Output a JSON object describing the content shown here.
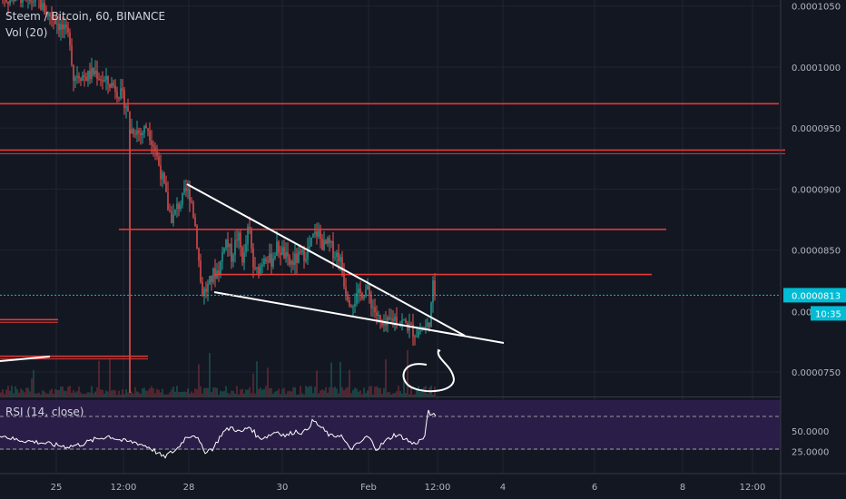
{
  "header": {
    "symbol_line": "Steem / Bitcoin, 60, BINANCE",
    "volume_label": "Vol (20)"
  },
  "rsi_pane": {
    "label": "RSI (14, close)",
    "ticks": [
      "50.0000",
      "25.0000"
    ]
  },
  "colors": {
    "background": "#131722",
    "grid": "#1f2433",
    "up": "#26a69a",
    "down": "#ef5350",
    "horizontal_lines": "#e53935",
    "trendlines": "#ffffff",
    "rsi_band": "#2a1e48",
    "rsi_line": "#ffffff",
    "last_price": "#00bcd4"
  },
  "chart_data": {
    "type": "candlestick",
    "y_axis_ticks": [
      "0.0001050",
      "0.0001000",
      "0.0000950",
      "0.0000900",
      "0.0000850",
      "0.0000750"
    ],
    "x_axis_ticks": [
      "25",
      "12:00",
      "28",
      "30",
      "Feb",
      "12:00",
      "4",
      "6",
      "8",
      "12:00"
    ],
    "ylim": [
      7.3e-05,
      0.0001055
    ],
    "last_price": "0.0000813",
    "partial_label": "0.00",
    "countdown": "10:35",
    "horizontal_levels": [
      9.7e-05,
      9.32e-05,
      8.67e-05,
      8.3e-05,
      7.93e-05,
      7.63e-05
    ],
    "price_path": [
      [
        0,
        0.0001062
      ],
      [
        5,
        0.0001058
      ],
      [
        10,
        0.0001055
      ],
      [
        20,
        0.000106
      ],
      [
        30,
        0.0001052
      ],
      [
        40,
        0.0001057
      ],
      [
        50,
        0.0001045
      ],
      [
        60,
        0.000104
      ],
      [
        70,
        0.000103
      ],
      [
        78,
        0.0001022
      ],
      [
        80,
        9.9e-05
      ],
      [
        85,
        9.95e-05
      ],
      [
        95,
        9.92e-05
      ],
      [
        105,
        9.96e-05
      ],
      [
        115,
        9.88e-05
      ],
      [
        125,
        9.85e-05
      ],
      [
        135,
        9.75e-05
      ],
      [
        140,
        9.68e-05
      ],
      [
        143,
        9.48e-05
      ],
      [
        148,
        9.5e-05
      ],
      [
        155,
        9.45e-05
      ],
      [
        162,
        9.52e-05
      ],
      [
        170,
        9.35e-05
      ],
      [
        175,
        9.2e-05
      ],
      [
        180,
        9.05e-05
      ],
      [
        185,
        8.85e-05
      ],
      [
        190,
        8.75e-05
      ],
      [
        195,
        8.85e-05
      ],
      [
        200,
        8.9e-05
      ],
      [
        205,
        8.98e-05
      ],
      [
        210,
        8.95e-05
      ],
      [
        215,
        8.7e-05
      ],
      [
        218,
        8.5e-05
      ],
      [
        222,
        8.15e-05
      ],
      [
        228,
        8.18e-05
      ],
      [
        235,
        8.3e-05
      ],
      [
        242,
        8.35e-05
      ],
      [
        248,
        8.6e-05
      ],
      [
        255,
        8.45e-05
      ],
      [
        262,
        8.63e-05
      ],
      [
        268,
        8.4e-05
      ],
      [
        274,
        8.7e-05
      ],
      [
        280,
        8.3e-05
      ],
      [
        286,
        8.35e-05
      ],
      [
        292,
        8.48e-05
      ],
      [
        298,
        8.4e-05
      ],
      [
        305,
        8.52e-05
      ],
      [
        312,
        8.48e-05
      ],
      [
        318,
        8.38e-05
      ],
      [
        325,
        8.42e-05
      ],
      [
        332,
        8.45e-05
      ],
      [
        340,
        8.5e-05
      ],
      [
        345,
        8.6e-05
      ],
      [
        350,
        8.65e-05
      ],
      [
        356,
        8.53e-05
      ],
      [
        362,
        8.55e-05
      ],
      [
        368,
        8.48e-05
      ],
      [
        374,
        8.45e-05
      ],
      [
        380,
        8.2e-05
      ],
      [
        386,
        8.08e-05
      ],
      [
        392,
        8.1e-05
      ],
      [
        398,
        8.15e-05
      ],
      [
        404,
        8.18e-05
      ],
      [
        410,
        8.05e-05
      ],
      [
        416,
        7.95e-05
      ],
      [
        422,
        7.85e-05
      ],
      [
        428,
        7.9e-05
      ],
      [
        434,
        7.95e-05
      ],
      [
        440,
        7.92e-05
      ],
      [
        446,
        7.9e-05
      ],
      [
        452,
        7.86e-05
      ],
      [
        458,
        7.82e-05
      ],
      [
        464,
        7.85e-05
      ],
      [
        470,
        7.86e-05
      ],
      [
        474,
        7.95e-05
      ],
      [
        477,
        8.2e-05
      ],
      [
        480,
        8.13e-05
      ]
    ],
    "rsi_path": [
      [
        0,
        48
      ],
      [
        15,
        42
      ],
      [
        30,
        40
      ],
      [
        45,
        38
      ],
      [
        60,
        35
      ],
      [
        75,
        33
      ],
      [
        90,
        36
      ],
      [
        105,
        42
      ],
      [
        120,
        46
      ],
      [
        135,
        40
      ],
      [
        150,
        38
      ],
      [
        165,
        32
      ],
      [
        180,
        20
      ],
      [
        195,
        30
      ],
      [
        205,
        45
      ],
      [
        215,
        48
      ],
      [
        225,
        27
      ],
      [
        235,
        31
      ],
      [
        245,
        50
      ],
      [
        255,
        57
      ],
      [
        265,
        50
      ],
      [
        275,
        58
      ],
      [
        285,
        43
      ],
      [
        295,
        46
      ],
      [
        305,
        52
      ],
      [
        315,
        46
      ],
      [
        325,
        52
      ],
      [
        335,
        50
      ],
      [
        345,
        65
      ],
      [
        355,
        55
      ],
      [
        365,
        45
      ],
      [
        375,
        48
      ],
      [
        385,
        30
      ],
      [
        395,
        36
      ],
      [
        405,
        46
      ],
      [
        415,
        30
      ],
      [
        425,
        40
      ],
      [
        435,
        48
      ],
      [
        445,
        44
      ],
      [
        455,
        36
      ],
      [
        462,
        40
      ],
      [
        468,
        45
      ],
      [
        472,
        78
      ],
      [
        476,
        70
      ],
      [
        480,
        72
      ]
    ]
  }
}
